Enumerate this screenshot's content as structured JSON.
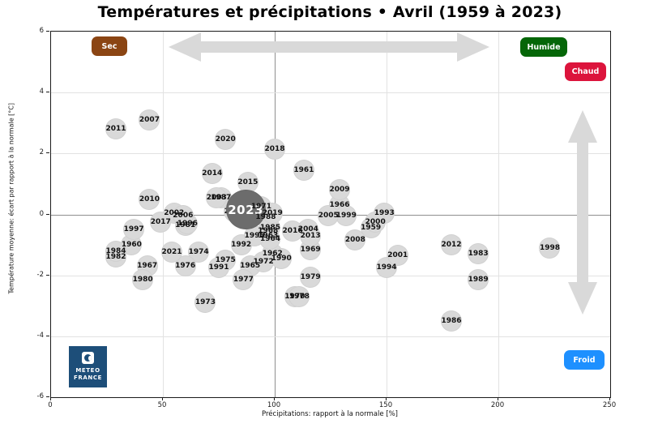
{
  "title": "Températures et précipitations • Avril (1959 à 2023)",
  "axes": {
    "x_label": "Précipitations: rapport à la normale [%]",
    "y_label": "Température moyenne: écart par rapport à la normale [°C]"
  },
  "quadrant_badges": {
    "sec": {
      "label": "Sec",
      "color": "#8B4513"
    },
    "humide": {
      "label": "Humide",
      "color": "#056608"
    },
    "chaud": {
      "label": "Chaud",
      "color": "#DC143C"
    },
    "froid": {
      "label": "Froid",
      "color": "#1E90FF"
    }
  },
  "logo": {
    "line1": "METEO",
    "line2": "FRANCE",
    "color": "#1d4e79"
  },
  "colors": {
    "point_fill": "#d9d9d9",
    "point_text": "#111111",
    "highlight_fill": "#6c6c6c",
    "highlight_text": "#ffffff",
    "arrow": "#d9d9d9",
    "grid": "#e2e2e2",
    "grid_emphasis": "#8f8f8f"
  },
  "chart_data": {
    "type": "scatter",
    "title": "Températures et précipitations • Avril (1959 à 2023)",
    "xlabel": "Précipitations: rapport à la normale [%]",
    "ylabel": "Température moyenne: écart par rapport à la normale [°C]",
    "xlim": [
      0,
      250
    ],
    "ylim": [
      -6,
      6
    ],
    "x_ticks": [
      0,
      50,
      100,
      150,
      200,
      250
    ],
    "y_ticks": [
      -6,
      -4,
      -2,
      0,
      2,
      4,
      6
    ],
    "x_emphasis": 100,
    "y_emphasis": 0,
    "grid": true,
    "highlight_year": "2023",
    "points": [
      {
        "year": "1959",
        "x": 143,
        "y": -0.45
      },
      {
        "year": "1960",
        "x": 36,
        "y": -1.0
      },
      {
        "year": "1961",
        "x": 113,
        "y": 1.45
      },
      {
        "year": "1962",
        "x": 99,
        "y": -1.3
      },
      {
        "year": "1963",
        "x": 97,
        "y": -0.7
      },
      {
        "year": "1964",
        "x": 98,
        "y": -0.8
      },
      {
        "year": "1965",
        "x": 89,
        "y": -1.7
      },
      {
        "year": "1966",
        "x": 129,
        "y": 0.3
      },
      {
        "year": "1967",
        "x": 43,
        "y": -1.7
      },
      {
        "year": "1968",
        "x": 97,
        "y": -0.55
      },
      {
        "year": "1969",
        "x": 116,
        "y": -1.15
      },
      {
        "year": "1970",
        "x": 109,
        "y": -2.7
      },
      {
        "year": "1971",
        "x": 94,
        "y": 0.25
      },
      {
        "year": "1972",
        "x": 95,
        "y": -1.55
      },
      {
        "year": "1973",
        "x": 69,
        "y": -2.9
      },
      {
        "year": "1974",
        "x": 66,
        "y": -1.25
      },
      {
        "year": "1975",
        "x": 78,
        "y": -1.5
      },
      {
        "year": "1976",
        "x": 60,
        "y": -1.7
      },
      {
        "year": "1977",
        "x": 86,
        "y": -2.15
      },
      {
        "year": "1978",
        "x": 111,
        "y": -2.7
      },
      {
        "year": "1979",
        "x": 116,
        "y": -2.05
      },
      {
        "year": "1980",
        "x": 41,
        "y": -2.15
      },
      {
        "year": "1981",
        "x": 60,
        "y": -0.35
      },
      {
        "year": "1982",
        "x": 29,
        "y": -1.4
      },
      {
        "year": "1983",
        "x": 191,
        "y": -1.3
      },
      {
        "year": "1984",
        "x": 29,
        "y": -1.2
      },
      {
        "year": "1985",
        "x": 98,
        "y": -0.45
      },
      {
        "year": "1986",
        "x": 179,
        "y": -3.5
      },
      {
        "year": "1987",
        "x": 76,
        "y": 0.55
      },
      {
        "year": "1988",
        "x": 96,
        "y": -0.1
      },
      {
        "year": "1989",
        "x": 191,
        "y": -2.15
      },
      {
        "year": "1990",
        "x": 103,
        "y": -1.45
      },
      {
        "year": "1991",
        "x": 75,
        "y": -1.75
      },
      {
        "year": "1992",
        "x": 85,
        "y": -1.0
      },
      {
        "year": "1993",
        "x": 149,
        "y": 0.05
      },
      {
        "year": "1994",
        "x": 150,
        "y": -1.75
      },
      {
        "year": "1995",
        "x": 91,
        "y": -0.7
      },
      {
        "year": "1996",
        "x": 61,
        "y": -0.3
      },
      {
        "year": "1997",
        "x": 37,
        "y": -0.5
      },
      {
        "year": "1998",
        "x": 223,
        "y": -1.1
      },
      {
        "year": "1999",
        "x": 132,
        "y": -0.05
      },
      {
        "year": "2000",
        "x": 145,
        "y": -0.25
      },
      {
        "year": "2001",
        "x": 155,
        "y": -1.35
      },
      {
        "year": "2002",
        "x": 55,
        "y": 0.05
      },
      {
        "year": "2003",
        "x": 74,
        "y": 0.55
      },
      {
        "year": "2004",
        "x": 115,
        "y": -0.5
      },
      {
        "year": "2005",
        "x": 124,
        "y": -0.05
      },
      {
        "year": "2006",
        "x": 59,
        "y": -0.05
      },
      {
        "year": "2007",
        "x": 44,
        "y": 3.1
      },
      {
        "year": "2008",
        "x": 136,
        "y": -0.85
      },
      {
        "year": "2009",
        "x": 129,
        "y": 0.8
      },
      {
        "year": "2010",
        "x": 44,
        "y": 0.5
      },
      {
        "year": "2011",
        "x": 29,
        "y": 2.8
      },
      {
        "year": "2012",
        "x": 179,
        "y": -1.0
      },
      {
        "year": "2013",
        "x": 116,
        "y": -0.7
      },
      {
        "year": "2014",
        "x": 72,
        "y": 1.35
      },
      {
        "year": "2015",
        "x": 88,
        "y": 1.05
      },
      {
        "year": "2016",
        "x": 108,
        "y": -0.55
      },
      {
        "year": "2017",
        "x": 49,
        "y": -0.25
      },
      {
        "year": "2018",
        "x": 100,
        "y": 2.15
      },
      {
        "year": "2019",
        "x": 99,
        "y": 0.05
      },
      {
        "year": "2020",
        "x": 78,
        "y": 2.45
      },
      {
        "year": "2021",
        "x": 54,
        "y": -1.25
      },
      {
        "year": "2022",
        "x": 82,
        "y": 0.1
      },
      {
        "year": "2023",
        "x": 87,
        "y": 0.15
      }
    ]
  }
}
